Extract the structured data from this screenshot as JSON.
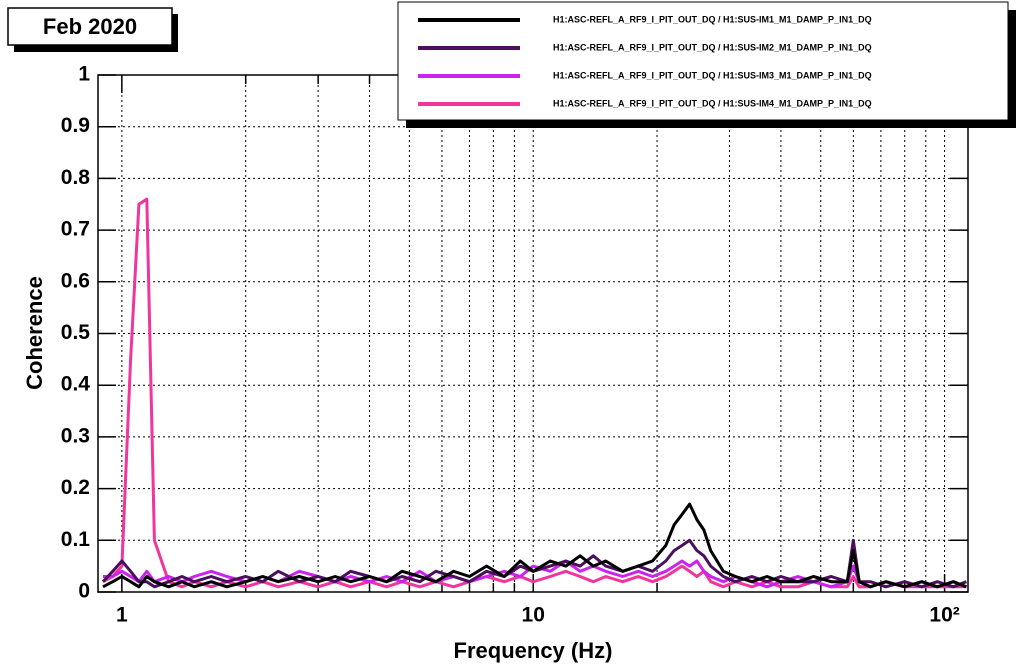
{
  "chart_data": {
    "type": "line",
    "title": "Feb 2020",
    "xlabel": "Frequency (Hz)",
    "ylabel": "Coherence",
    "xscale": "log",
    "grid": true,
    "legend": "upper right",
    "xlim": [
      0.875,
      114
    ],
    "ylim": [
      0,
      1
    ],
    "xticks": [
      1,
      10,
      {
        "value": 100,
        "label": "10²"
      }
    ],
    "xminorticks": [
      2,
      3,
      4,
      5,
      6,
      7,
      8,
      9,
      20,
      30,
      40,
      50,
      60,
      70,
      80,
      90
    ],
    "yticks": [
      0,
      0.1,
      0.2,
      0.3,
      0.4,
      0.5,
      0.6,
      0.7,
      0.8,
      0.9,
      1
    ],
    "x": [
      0.9,
      0.95,
      1.0,
      1.05,
      1.1,
      1.15,
      1.2,
      1.3,
      1.4,
      1.5,
      1.65,
      1.8,
      2.0,
      2.2,
      2.4,
      2.7,
      3.0,
      3.3,
      3.6,
      4.0,
      4.4,
      4.8,
      5.3,
      5.8,
      6.4,
      7.0,
      7.7,
      8.5,
      9.3,
      10,
      11,
      12,
      13,
      14,
      15,
      16.5,
      18,
      19.5,
      21,
      22,
      23,
      24,
      25,
      26,
      27,
      29,
      31,
      34,
      37,
      40,
      44,
      48,
      53,
      58,
      60,
      62,
      66,
      72,
      80,
      88,
      96,
      105,
      113
    ],
    "series": [
      {
        "name": "H1:ASC-REFL_A_RF9_I_PIT_OUT_DQ / H1:SUS-IM1_M1_DAMP_P_IN1_DQ",
        "color": "#000000",
        "values": [
          0.01,
          0.02,
          0.03,
          0.02,
          0.01,
          0.03,
          0.02,
          0.01,
          0.02,
          0.01,
          0.02,
          0.01,
          0.02,
          0.03,
          0.02,
          0.03,
          0.02,
          0.03,
          0.02,
          0.03,
          0.02,
          0.04,
          0.03,
          0.02,
          0.04,
          0.03,
          0.05,
          0.03,
          0.06,
          0.04,
          0.06,
          0.05,
          0.07,
          0.05,
          0.06,
          0.04,
          0.05,
          0.06,
          0.09,
          0.13,
          0.15,
          0.17,
          0.14,
          0.12,
          0.08,
          0.04,
          0.03,
          0.02,
          0.03,
          0.02,
          0.02,
          0.03,
          0.02,
          0.02,
          0.08,
          0.02,
          0.01,
          0.02,
          0.01,
          0.02,
          0.01,
          0.02,
          0.01
        ]
      },
      {
        "name": "H1:ASC-REFL_A_RF9_I_PIT_OUT_DQ / H1:SUS-IM2_M1_DAMP_P_IN1_DQ",
        "color": "#4b0f5e",
        "values": [
          0.02,
          0.04,
          0.06,
          0.04,
          0.02,
          0.02,
          0.01,
          0.02,
          0.03,
          0.02,
          0.03,
          0.02,
          0.03,
          0.02,
          0.04,
          0.02,
          0.03,
          0.02,
          0.04,
          0.03,
          0.02,
          0.03,
          0.02,
          0.04,
          0.03,
          0.02,
          0.04,
          0.03,
          0.05,
          0.04,
          0.05,
          0.06,
          0.05,
          0.07,
          0.05,
          0.04,
          0.05,
          0.04,
          0.06,
          0.08,
          0.09,
          0.1,
          0.08,
          0.07,
          0.05,
          0.03,
          0.02,
          0.03,
          0.02,
          0.03,
          0.02,
          0.02,
          0.03,
          0.02,
          0.1,
          0.02,
          0.02,
          0.01,
          0.02,
          0.01,
          0.02,
          0.01,
          0.02
        ]
      },
      {
        "name": "H1:ASC-REFL_A_RF9_I_PIT_OUT_DQ / H1:SUS-IM3_M1_DAMP_P_IN1_DQ",
        "color": "#cc22ee",
        "values": [
          0.03,
          0.03,
          0.04,
          0.03,
          0.02,
          0.04,
          0.02,
          0.03,
          0.02,
          0.03,
          0.04,
          0.03,
          0.02,
          0.03,
          0.02,
          0.04,
          0.03,
          0.02,
          0.03,
          0.02,
          0.03,
          0.02,
          0.04,
          0.02,
          0.03,
          0.02,
          0.03,
          0.04,
          0.03,
          0.05,
          0.04,
          0.06,
          0.04,
          0.05,
          0.04,
          0.03,
          0.04,
          0.03,
          0.04,
          0.05,
          0.06,
          0.05,
          0.06,
          0.04,
          0.03,
          0.02,
          0.03,
          0.02,
          0.01,
          0.02,
          0.03,
          0.02,
          0.01,
          0.02,
          0.05,
          0.02,
          0.01,
          0.02,
          0.01,
          0.02,
          0.01,
          0.02,
          0.01
        ]
      },
      {
        "name": "H1:ASC-REFL_A_RF9_I_PIT_OUT_DQ / H1:SUS-IM4_M1_DAMP_P_IN1_DQ",
        "color": "#f0359c",
        "values": [
          0.02,
          0.03,
          0.05,
          0.45,
          0.75,
          0.76,
          0.1,
          0.02,
          0.01,
          0.02,
          0.01,
          0.02,
          0.01,
          0.02,
          0.01,
          0.02,
          0.01,
          0.02,
          0.01,
          0.02,
          0.01,
          0.02,
          0.01,
          0.02,
          0.01,
          0.02,
          0.03,
          0.02,
          0.03,
          0.02,
          0.03,
          0.04,
          0.03,
          0.02,
          0.03,
          0.02,
          0.03,
          0.02,
          0.03,
          0.04,
          0.05,
          0.04,
          0.03,
          0.04,
          0.02,
          0.01,
          0.02,
          0.01,
          0.02,
          0.01,
          0.01,
          0.02,
          0.01,
          0.01,
          0.03,
          0.01,
          0.01,
          0.02,
          0.01,
          0.01,
          0.01,
          0.01,
          0.01
        ]
      }
    ]
  }
}
